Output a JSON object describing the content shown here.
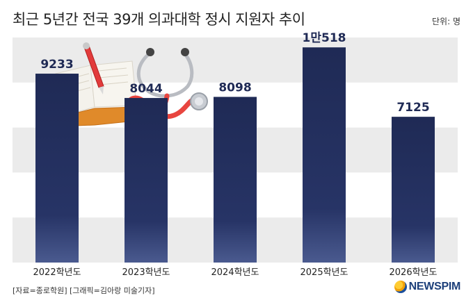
{
  "header": {
    "title": "최근 5년간 전국 39개 의과대학 정시 지원자 추이",
    "unit": "단위: 명"
  },
  "chart_data": {
    "type": "bar",
    "title": "최근 5년간 전국 39개 의과대학 정시 지원자 추이",
    "categories": [
      "2022학년도",
      "2023학년도",
      "2024학년도",
      "2025학년도",
      "2026학년도"
    ],
    "values": [
      9233,
      8044,
      8098,
      10518,
      7125
    ],
    "value_labels": [
      "9233",
      "8044",
      "8098",
      "1만518",
      "7125"
    ],
    "ylim": [
      0,
      11000
    ],
    "grid": "alternating horizontal bands",
    "bar_color": "#1f2a55",
    "band_color": "#ebebeb"
  },
  "footer": {
    "source": "[자료=종로학원] [그래픽=김아랑 미술기자]",
    "logo": "NEWSPIM"
  },
  "illustration": {
    "name": "stethoscope-book-pen-illustration"
  }
}
